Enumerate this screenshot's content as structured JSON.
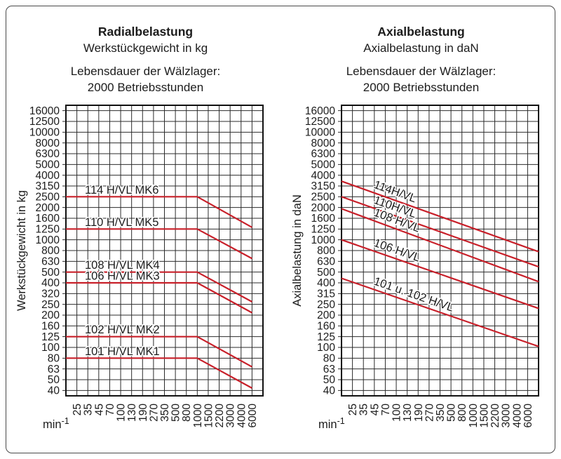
{
  "page": {
    "background": "#ffffff",
    "frame_border_color": "#4a4a4a",
    "grid_color": "#2b2b2b",
    "accent_red": "#c8202a"
  },
  "chart_data": [
    {
      "type": "line",
      "panel": "radialbelastung",
      "title": "Radialbelastung",
      "subtitle": "Werkstückgewicht in kg",
      "note_line1": "Lebensdauer der Wälzlager:",
      "note_line2": "2000 Betriebsstunden",
      "y_axis_title": "Werkstückgewicht in kg",
      "x_unit": "min",
      "x_unit_sup": "-1",
      "grid": true,
      "legend": "labels-on-lines",
      "line_color": "#c8202a",
      "label_style": "horizontal",
      "x_ticks": [
        25,
        35,
        45,
        70,
        100,
        130,
        190,
        270,
        350,
        500,
        800,
        1000,
        1500,
        2200,
        3000,
        4000,
        6000
      ],
      "y_ticks": [
        16000,
        12500,
        10000,
        8000,
        6300,
        5000,
        4000,
        3150,
        2500,
        2000,
        1600,
        1250,
        1000,
        800,
        630,
        500,
        400,
        320,
        250,
        200,
        160,
        125,
        100,
        80,
        63,
        50,
        40
      ],
      "x_range_label": "25 to 6000 min-1",
      "series": [
        {
          "name": "114 H/VL  MK6",
          "points": [
            [
              "left",
              2500
            ],
            [
              1000,
              2500
            ],
            [
              6000,
              1300
            ]
          ]
        },
        {
          "name": "110 H/VL  MK5",
          "points": [
            [
              "left",
              1250
            ],
            [
              1000,
              1250
            ],
            [
              6000,
              670
            ]
          ]
        },
        {
          "name": "108 H/VL  MK4",
          "points": [
            [
              "left",
              500
            ],
            [
              1000,
              500
            ],
            [
              6000,
              265
            ]
          ]
        },
        {
          "name": "106 H/VL  MK3",
          "points": [
            [
              "left",
              400
            ],
            [
              1000,
              400
            ],
            [
              6000,
              210
            ]
          ]
        },
        {
          "name": "102 H/VL  MK2",
          "points": [
            [
              "left",
              125
            ],
            [
              1000,
              125
            ],
            [
              6000,
              66
            ]
          ]
        },
        {
          "name": "101 H/VL  MK1",
          "points": [
            [
              "left",
              80
            ],
            [
              1000,
              80
            ],
            [
              6000,
              42
            ]
          ]
        }
      ]
    },
    {
      "type": "line",
      "panel": "axialbelastung",
      "title": "Axialbelastung",
      "subtitle": "Axialbelastung in daN",
      "note_line1": "Lebensdauer der Wälzlager:",
      "note_line2": "2000 Betriebsstunden",
      "y_axis_title": "Axialbelastung in daN",
      "x_unit": "min",
      "x_unit_sup": "-1",
      "grid": true,
      "legend": "labels-on-lines",
      "line_color": "#c8202a",
      "label_style": "rotated",
      "x_ticks": [
        25,
        35,
        45,
        70,
        100,
        130,
        190,
        270,
        350,
        500,
        800,
        1000,
        1500,
        2200,
        3000,
        4000,
        6000
      ],
      "y_ticks": [
        16000,
        12500,
        10000,
        8000,
        6300,
        5000,
        4000,
        3150,
        2500,
        2000,
        1600,
        1250,
        1000,
        800,
        630,
        500,
        400,
        315,
        250,
        200,
        160,
        125,
        100,
        80,
        63,
        50,
        40
      ],
      "x_range_label": "25 to 6000 min-1",
      "series": [
        {
          "name": "114H/VL",
          "points": [
            [
              "left",
              3500
            ],
            [
              "right",
              780
            ]
          ]
        },
        {
          "name": "110H/VL",
          "points": [
            [
              "left",
              2500
            ],
            [
              "right",
              560
            ]
          ]
        },
        {
          "name": "108 H/VL",
          "points": [
            [
              "left",
              1950
            ],
            [
              "right",
              410
            ]
          ]
        },
        {
          "name": "106 H/VL",
          "points": [
            [
              "left",
              1000
            ],
            [
              "right",
              230
            ]
          ]
        },
        {
          "name": "101 u. 102 H/VL",
          "points": [
            [
              "left",
              440
            ],
            [
              "right",
              102
            ]
          ]
        }
      ]
    }
  ]
}
